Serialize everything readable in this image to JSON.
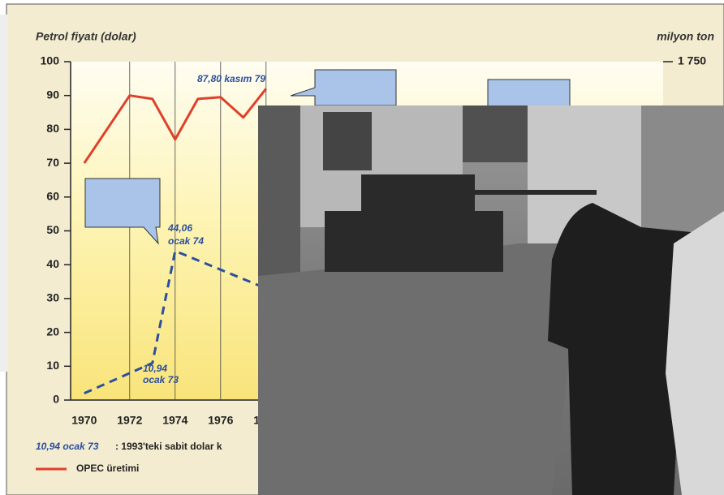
{
  "chart_data": {
    "type": "line",
    "title": "Petrol fiyatı (dolar)",
    "y2_label": "milyon ton",
    "xlim": [
      1969.4,
      1980
    ],
    "xticks": [
      1970,
      1972,
      1974,
      1976,
      1978
    ],
    "ylim": [
      0,
      100
    ],
    "yticks": [
      0,
      10,
      20,
      30,
      40,
      50,
      60,
      70,
      80,
      90,
      100
    ],
    "y2lim": [
      0,
      1750
    ],
    "y2ticks": [
      {
        "value": 1750,
        "label": "1 750"
      }
    ],
    "grid": true,
    "series": [
      {
        "name": "OPEC üretimi",
        "color": "#e0402a",
        "x": [
          1970,
          1972,
          1973,
          1974,
          1975,
          1976,
          1977,
          1978
        ],
        "values": [
          70,
          90,
          89,
          77,
          89,
          89.5,
          83.5,
          92
        ]
      },
      {
        "color": "#2b4f9e",
        "dashed": true,
        "x": [
          1970,
          1973,
          1974,
          1978
        ],
        "values": [
          2,
          10.94,
          44.06,
          33
        ]
      }
    ],
    "annotations": [
      "87,80 kasım 79",
      "44,06",
      "ocak 74",
      "10,94",
      "ocak 73"
    ],
    "footnote_key": "10,94 ocak 73",
    "footnote": ": 1993'teki sabit dolar k"
  }
}
